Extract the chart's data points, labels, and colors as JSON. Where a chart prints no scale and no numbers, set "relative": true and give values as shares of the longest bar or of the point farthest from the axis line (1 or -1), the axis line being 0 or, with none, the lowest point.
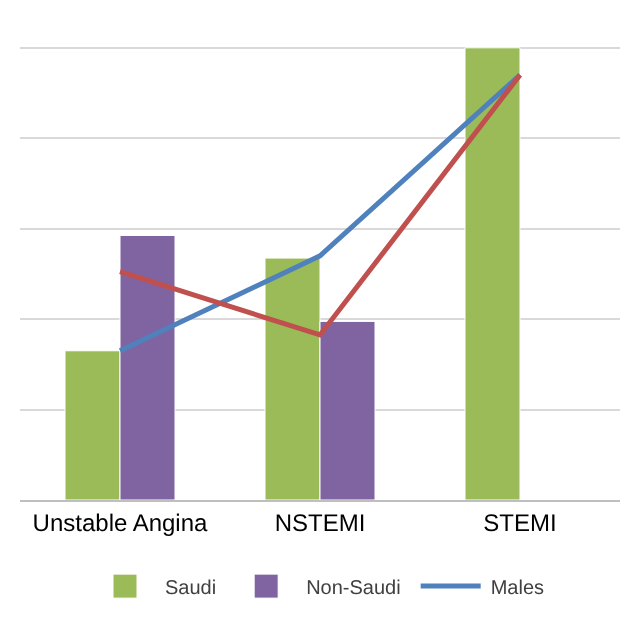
{
  "chart_data": {
    "type": "bar",
    "relative": true,
    "categories": [
      "Unstable Angina",
      "NSTEMI",
      "STEMI"
    ],
    "series": [
      {
        "name": "Saudi",
        "color": "#9bbb59",
        "values": [
          0.33,
          0.535,
          1.0
        ]
      },
      {
        "name": "Non-Saudi",
        "color": "#8064a2",
        "values": [
          0.585,
          0.395,
          null
        ]
      },
      {
        "name": "Males",
        "type": "line",
        "color": "#4f81bd",
        "values": [
          0.33,
          0.54,
          0.94
        ]
      },
      {
        "type": "line",
        "color": "#c0504d",
        "values": [
          0.505,
          0.365,
          0.94
        ]
      }
    ],
    "grid": "y",
    "legend": "bottom",
    "marker": "none"
  }
}
